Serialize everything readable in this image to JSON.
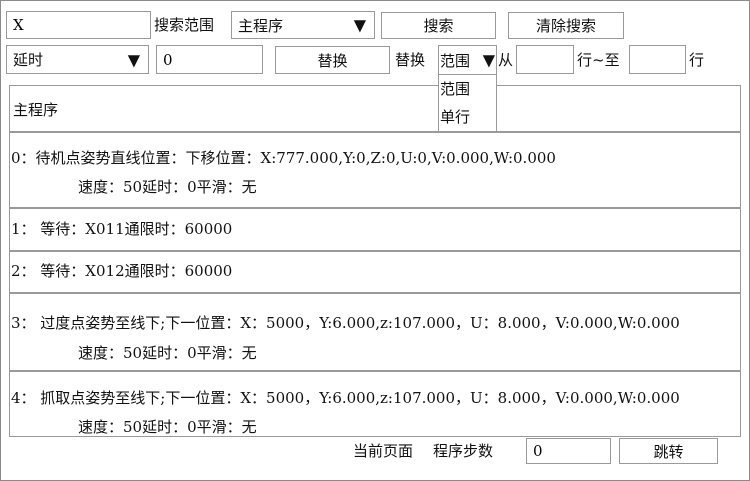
{
  "search": {
    "value": "X",
    "scope_label": "搜索范围",
    "scope_value": "主程序",
    "search_button": "搜索",
    "clear_button": "清除搜索"
  },
  "replace": {
    "field_value": "延时",
    "replace_value": "0",
    "replace_button": "替换",
    "replace_label": "替换",
    "range_value": "范围",
    "range_options": [
      "范围",
      "单行"
    ],
    "from_label": "从",
    "from_value": "",
    "to_label": "行~至",
    "to_value": "",
    "line_label": "行"
  },
  "table": {
    "header": "主程序",
    "rows": [
      {
        "line1": "0：待机点姿势直线位置：下移位置：X:777.000,Y:0,Z:0,U:0,V:0.000,W:0.000",
        "line2": "速度：50延时：0平滑：无"
      },
      {
        "line1": "1：  等待：X011通限时：60000",
        "line2": ""
      },
      {
        "line1": "2：  等待：X012通限时：60000",
        "line2": ""
      },
      {
        "line1": "3：  过度点姿势至线下;下一位置：X：5000，Y:6.000,z:107.000，U：8.000，V:0.000,W:0.000",
        "line2": "速度：50延时：0平滑：无"
      },
      {
        "line1": "4：  抓取点姿势至线下;下一位置：X：5000，Y:6.000,z:107.000，U：8.000，V:0.000,W:0.000",
        "line2": "速度：50延时：0平滑：无"
      }
    ]
  },
  "footer": {
    "current_page_label": "当前页面",
    "step_label": "程序步数",
    "step_value": "0",
    "jump_button": "跳转"
  },
  "icons": {
    "dropdown": "triangle-down-icon"
  }
}
